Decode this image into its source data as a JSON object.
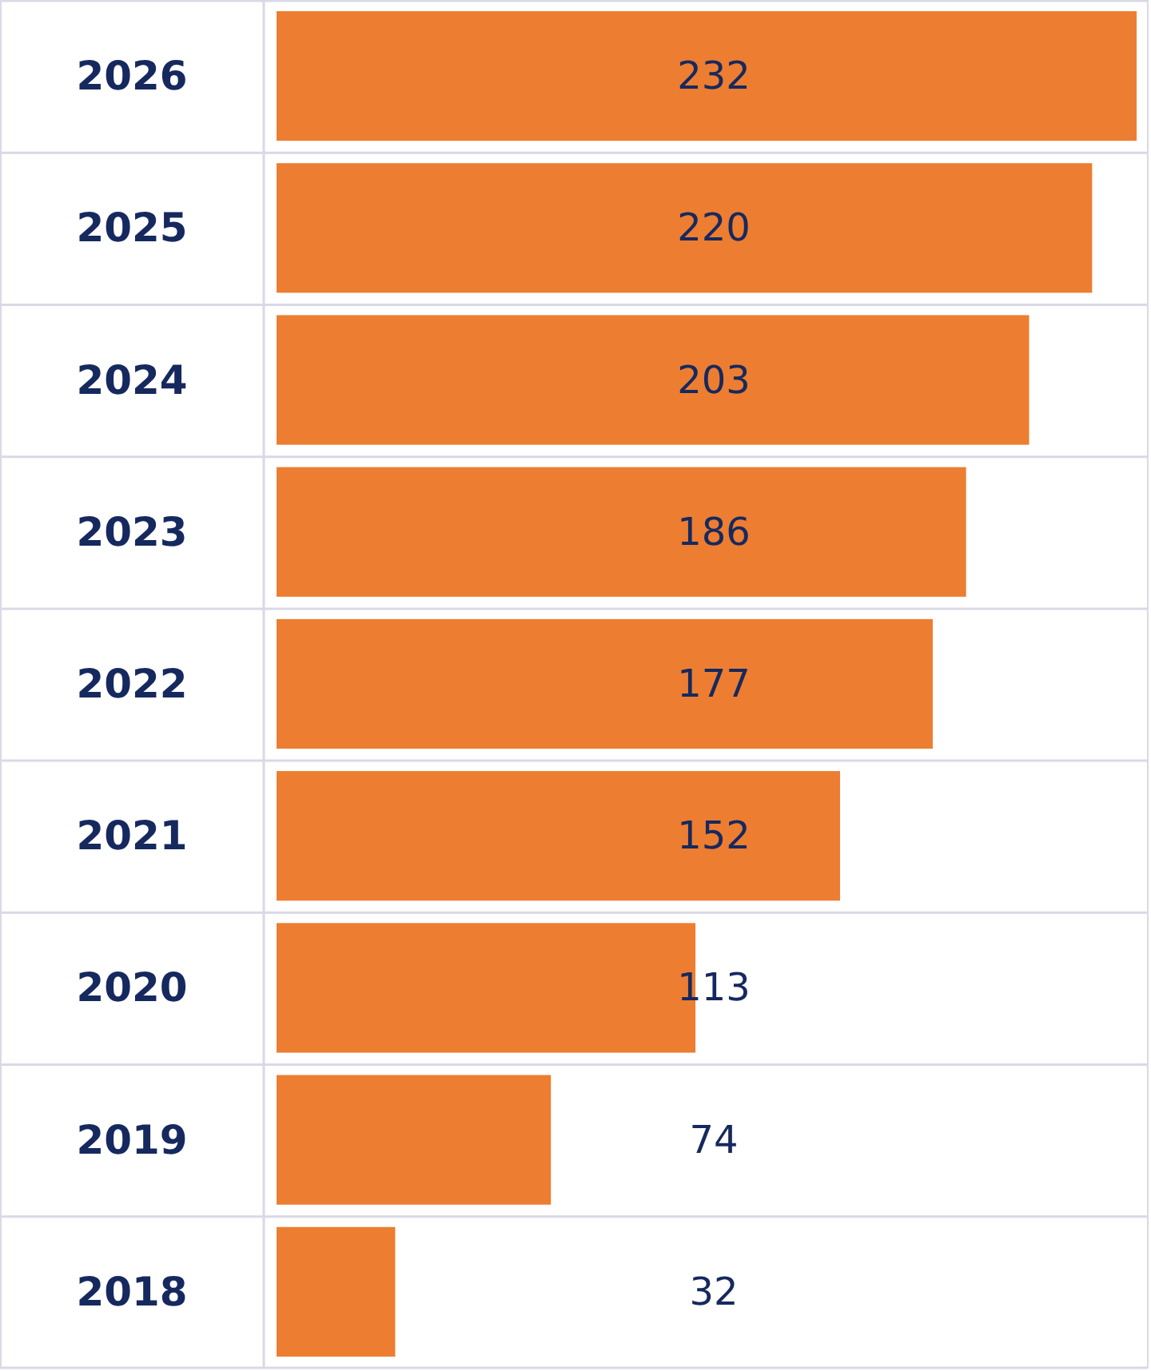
{
  "chart_data": {
    "type": "bar",
    "orientation": "horizontal",
    "categories": [
      "2026",
      "2025",
      "2024",
      "2023",
      "2022",
      "2021",
      "2020",
      "2019",
      "2018"
    ],
    "values": [
      232,
      220,
      203,
      186,
      177,
      152,
      113,
      74,
      32
    ],
    "color": "#ed7d31",
    "data_labels": true,
    "grid": true
  }
}
